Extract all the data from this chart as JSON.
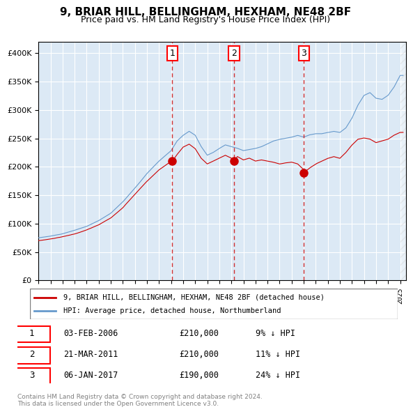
{
  "title": "9, BRIAR HILL, BELLINGHAM, HEXHAM, NE48 2BF",
  "subtitle": "Price paid vs. HM Land Registry's House Price Index (HPI)",
  "legend_red": "9, BRIAR HILL, BELLINGHAM, HEXHAM, NE48 2BF (detached house)",
  "legend_blue": "HPI: Average price, detached house, Northumberland",
  "footer": "Contains HM Land Registry data © Crown copyright and database right 2024.\nThis data is licensed under the Open Government Licence v3.0.",
  "transactions": [
    {
      "num": 1,
      "date": "03-FEB-2006",
      "price": 210000,
      "pct": "9%",
      "direction": "↓"
    },
    {
      "num": 2,
      "date": "21-MAR-2011",
      "price": 210000,
      "pct": "11%",
      "direction": "↓"
    },
    {
      "num": 3,
      "date": "06-JAN-2017",
      "price": 190000,
      "pct": "24%",
      "direction": "↓"
    }
  ],
  "transaction_dates_decimal": [
    2006.09,
    2011.22,
    2017.01
  ],
  "ylim": [
    0,
    420000
  ],
  "yticks": [
    0,
    50000,
    100000,
    150000,
    200000,
    250000,
    300000,
    350000,
    400000
  ],
  "start_year": 1995,
  "end_year": 2025,
  "background_color": "#dce9f5",
  "plot_bg": "#dce9f5",
  "red_color": "#cc0000",
  "blue_color": "#6699cc",
  "grid_color": "#ffffff",
  "vline_color": "#cc0000",
  "marker_color": "#cc0000"
}
